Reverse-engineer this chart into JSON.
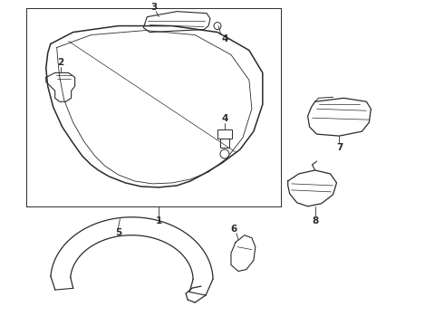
{
  "background_color": "#ffffff",
  "line_color": "#2a2a2a",
  "fig_width": 4.9,
  "fig_height": 3.6,
  "dpi": 100
}
